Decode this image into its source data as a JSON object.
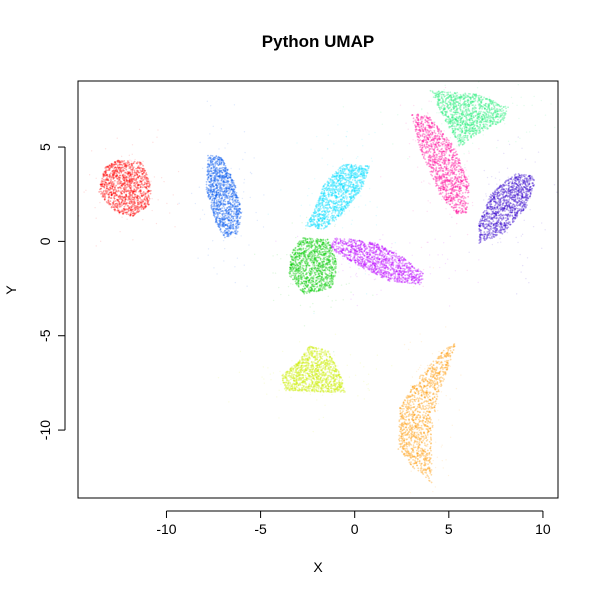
{
  "chart_data": {
    "type": "scatter",
    "title": "Python UMAP",
    "xlabel": "X",
    "ylabel": "Y",
    "xlim": [
      -14.7,
      10.8
    ],
    "ylim": [
      -13.6,
      8.5
    ],
    "x_ticks": [
      -10,
      -5,
      0,
      5,
      10
    ],
    "x_tick_labels": [
      "-10",
      "-5",
      "0",
      "5",
      "10"
    ],
    "y_ticks": [
      -10,
      -5,
      0,
      5
    ],
    "y_tick_labels": [
      "-10",
      "-5",
      "0",
      "5"
    ],
    "grid": false,
    "legend": "none",
    "clusters": [
      {
        "color": "#ff0000",
        "center": [
          -12.0,
          2.9
        ],
        "spread": [
          1.2,
          1.5
        ],
        "angle": 0,
        "outline": [
          [
            -12.6,
            4.3
          ],
          [
            -11.3,
            4.2
          ],
          [
            -10.8,
            3.0
          ],
          [
            -10.9,
            1.9
          ],
          [
            -11.8,
            1.3
          ],
          [
            -12.8,
            1.6
          ],
          [
            -13.6,
            2.6
          ],
          [
            -13.3,
            3.9
          ]
        ]
      },
      {
        "color": "#0055ee",
        "center": [
          -6.9,
          2.5
        ],
        "spread": [
          0.9,
          2.2
        ],
        "angle": -15,
        "outline": [
          [
            -7.8,
            4.6
          ],
          [
            -7.1,
            4.5
          ],
          [
            -6.4,
            3.2
          ],
          [
            -6.0,
            1.6
          ],
          [
            -6.2,
            0.4
          ],
          [
            -6.9,
            0.2
          ],
          [
            -7.4,
            1.0
          ],
          [
            -7.9,
            2.8
          ]
        ]
      },
      {
        "color": "#00ddff",
        "center": [
          -0.9,
          2.4
        ],
        "spread": [
          1.2,
          2.3
        ],
        "angle": 45,
        "outline": [
          [
            0.8,
            4.0
          ],
          [
            -0.6,
            4.1
          ],
          [
            -1.6,
            3.1
          ],
          [
            -2.1,
            1.8
          ],
          [
            -2.6,
            0.8
          ],
          [
            -1.6,
            0.6
          ],
          [
            -0.7,
            1.4
          ],
          [
            0.4,
            2.8
          ]
        ]
      },
      {
        "color": "#00cc00",
        "center": [
          -2.2,
          -1.3
        ],
        "spread": [
          1.3,
          1.4
        ],
        "angle": 0,
        "outline": [
          [
            -2.8,
            0.2
          ],
          [
            -1.4,
            0.1
          ],
          [
            -0.9,
            -1.2
          ],
          [
            -1.2,
            -2.5
          ],
          [
            -2.7,
            -2.8
          ],
          [
            -3.5,
            -1.8
          ],
          [
            -3.4,
            -0.6
          ]
        ]
      },
      {
        "color": "#bb00ff",
        "center": [
          1.5,
          -1.1
        ],
        "spread": [
          2.6,
          0.8
        ],
        "angle": -20,
        "outline": [
          [
            -1.1,
            0.2
          ],
          [
            1.0,
            0.0
          ],
          [
            2.5,
            -0.8
          ],
          [
            3.7,
            -1.7
          ],
          [
            3.5,
            -2.3
          ],
          [
            1.8,
            -2.1
          ],
          [
            0.2,
            -1.3
          ],
          [
            -1.3,
            -0.4
          ]
        ]
      },
      {
        "color": "#ff0099",
        "center": [
          4.6,
          4.3
        ],
        "spread": [
          1.2,
          2.9
        ],
        "angle": 20,
        "outline": [
          [
            3.0,
            6.8
          ],
          [
            4.0,
            6.6
          ],
          [
            5.3,
            5.0
          ],
          [
            6.1,
            3.0
          ],
          [
            6.0,
            1.5
          ],
          [
            5.4,
            1.4
          ],
          [
            4.5,
            2.5
          ],
          [
            3.5,
            4.8
          ]
        ]
      },
      {
        "color": "#22ee77",
        "center": [
          6.4,
          6.6
        ],
        "spread": [
          2.5,
          1.0
        ],
        "angle": -10,
        "outline": [
          [
            4.0,
            8.0
          ],
          [
            6.5,
            7.8
          ],
          [
            8.2,
            7.1
          ],
          [
            7.9,
            6.4
          ],
          [
            6.2,
            5.5
          ],
          [
            5.6,
            5.0
          ],
          [
            4.8,
            6.4
          ]
        ]
      },
      {
        "color": "#3300cc",
        "center": [
          8.2,
          1.7
        ],
        "spread": [
          1.3,
          2.0
        ],
        "angle": -40,
        "outline": [
          [
            9.4,
            3.5
          ],
          [
            8.6,
            3.6
          ],
          [
            7.3,
            2.7
          ],
          [
            6.6,
            1.0
          ],
          [
            6.6,
            -0.1
          ],
          [
            7.9,
            0.4
          ],
          [
            9.1,
            1.8
          ],
          [
            9.6,
            3.1
          ]
        ]
      },
      {
        "color": "#ccee00",
        "center": [
          -2.2,
          -7.3
        ],
        "spread": [
          2.0,
          1.0
        ],
        "angle": 10,
        "outline": [
          [
            -2.4,
            -5.5
          ],
          [
            -1.4,
            -5.8
          ],
          [
            -0.6,
            -7.4
          ],
          [
            -0.5,
            -8.0
          ],
          [
            -1.8,
            -8.0
          ],
          [
            -3.7,
            -7.9
          ],
          [
            -3.9,
            -7.1
          ],
          [
            -3.0,
            -6.4
          ]
        ]
      },
      {
        "color": "#ff9900",
        "center": [
          4.0,
          -9.4
        ],
        "spread": [
          0.9,
          3.5
        ],
        "angle": 25,
        "outline": [
          [
            5.4,
            -5.3
          ],
          [
            5.0,
            -6.6
          ],
          [
            4.4,
            -8.3
          ],
          [
            4.1,
            -10.2
          ],
          [
            4.1,
            -12.8
          ],
          [
            3.2,
            -12.1
          ],
          [
            2.3,
            -11.0
          ],
          [
            2.4,
            -8.8
          ],
          [
            3.3,
            -7.3
          ],
          [
            4.7,
            -5.8
          ]
        ]
      }
    ]
  }
}
